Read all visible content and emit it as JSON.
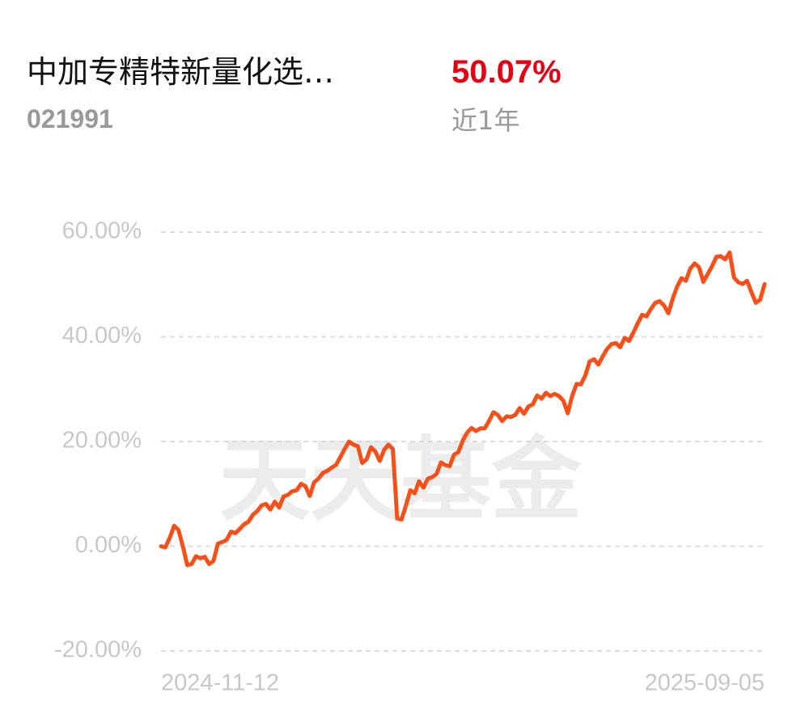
{
  "header": {
    "title": "中加专精特新量化选…",
    "code": "021991",
    "return": "50.07%",
    "period": "近1年"
  },
  "watermark": "天天基金",
  "chart_data": {
    "type": "line",
    "color": "#f5501a",
    "grid": true,
    "ylim": [
      -20,
      60
    ],
    "yticks": [
      {
        "value": -20,
        "label": "-20.00%"
      },
      {
        "value": 0,
        "label": "0.00%"
      },
      {
        "value": 20,
        "label": "20.00%"
      },
      {
        "value": 40,
        "label": "40.00%"
      },
      {
        "value": 60,
        "label": "60.00%"
      }
    ],
    "categories": [
      "2024-11-12",
      null,
      null,
      null,
      null,
      null,
      null,
      null,
      null,
      null,
      null,
      null,
      null,
      null,
      null,
      null,
      null,
      null,
      null,
      null,
      null,
      null,
      null,
      null,
      null,
      null,
      null,
      null,
      null,
      null,
      null,
      null,
      null,
      null,
      null,
      null,
      null,
      null,
      null,
      null,
      null,
      null,
      null,
      null,
      null,
      null,
      null,
      null,
      null,
      null,
      null,
      null,
      null,
      null,
      null,
      null,
      null,
      null,
      null,
      null,
      null,
      null,
      null,
      null,
      null,
      null,
      null,
      null,
      null,
      null,
      null,
      null,
      null,
      null,
      null,
      null,
      null,
      null,
      null,
      null,
      null,
      null,
      null,
      null,
      null,
      null,
      null,
      null,
      null,
      null,
      null,
      null,
      null,
      null,
      null,
      null,
      null,
      null,
      null,
      null,
      null,
      null,
      null,
      null,
      null,
      null,
      null,
      null,
      null,
      null,
      null,
      null,
      null,
      null,
      null,
      null,
      null,
      null,
      null,
      null,
      null,
      null,
      null,
      null,
      null,
      null,
      null,
      null,
      null,
      null,
      null,
      null,
      null,
      null,
      null,
      null,
      null,
      null,
      "2025-09-05"
    ],
    "values": [
      0,
      -0.2,
      1.6,
      3.9,
      3.1,
      0,
      -3.6,
      -3.4,
      -1.9,
      -2.3,
      -2,
      -3.4,
      -2.8,
      0.5,
      0.8,
      1.2,
      2.8,
      2.5,
      3.3,
      4.2,
      4.7,
      6,
      6.7,
      7.8,
      8.1,
      7,
      8.5,
      7.4,
      9.5,
      9.8,
      10.5,
      10.7,
      11.9,
      11.5,
      9.6,
      12.2,
      12.9,
      14,
      14.4,
      15,
      15.5,
      17,
      18.6,
      20,
      19.4,
      19.1,
      15.9,
      16.6,
      18.9,
      18.1,
      16.3,
      18.4,
      19.4,
      18.6,
      5.3,
      5.1,
      7.8,
      10.7,
      10.1,
      12.4,
      11.2,
      12.9,
      13.2,
      13.8,
      16,
      15.5,
      15.3,
      17.5,
      18,
      20.2,
      21.7,
      22.6,
      22,
      22.5,
      22.5,
      23.9,
      25.6,
      25.1,
      23.9,
      24.8,
      24.7,
      25.1,
      26.4,
      25.3,
      26.7,
      27.1,
      28.8,
      28.2,
      29.3,
      28.7,
      29.1,
      28.7,
      27.8,
      25.4,
      28.7,
      31,
      30.9,
      32.6,
      35.3,
      35.7,
      34.7,
      36.3,
      37.7,
      38.6,
      38.8,
      38,
      39.8,
      39.2,
      40.8,
      42.6,
      44.2,
      43.9,
      45.3,
      46.5,
      46.8,
      46,
      44.5,
      47.3,
      49.6,
      51.2,
      50.7,
      53,
      54,
      53.3,
      50.5,
      52,
      53.5,
      55.3,
      55.4,
      54.8,
      56.1,
      51.3,
      50.4,
      50.1,
      50.7,
      48.5,
      46.5,
      47.1,
      50.07
    ]
  }
}
